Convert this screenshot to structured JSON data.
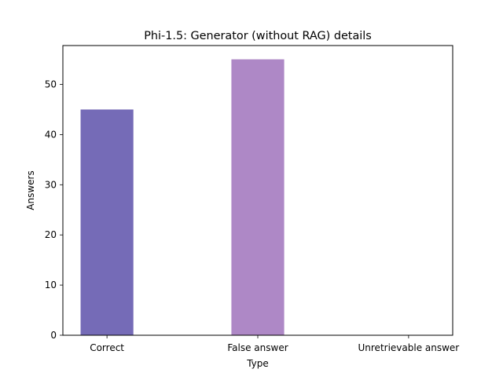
{
  "chart_data": {
    "type": "bar",
    "title": "Phi-1.5: Generator (without RAG) details",
    "xlabel": "Type",
    "ylabel": "Answers",
    "categories": [
      "Correct",
      "False answer",
      "Unretrievable answer"
    ],
    "values": [
      45,
      55,
      0
    ],
    "bar_colors": [
      "#756bb7",
      "#ae88c6",
      "#ae88c6"
    ],
    "ylim": [
      0,
      57.75
    ],
    "yticks": [
      0,
      10,
      20,
      30,
      40,
      50
    ],
    "grid": false,
    "legend": "none"
  }
}
